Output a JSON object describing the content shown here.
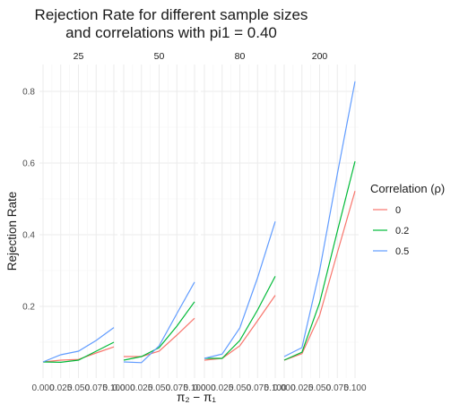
{
  "chart_data": {
    "type": "line",
    "title_lines": [
      "Rejection Rate for different sample sizes",
      "and correlations with pi1 = 0.40"
    ],
    "xlabel": "π₂ − π₁",
    "ylabel": "Rejection Rate",
    "x_values": [
      0,
      0.025,
      0.05,
      0.075,
      0.1
    ],
    "x_tick_labels": [
      "0.000",
      "0.025",
      "0.050",
      "0.075",
      "0.100"
    ],
    "xlim": [
      0,
      0.1
    ],
    "ylim": [
      0.0,
      0.85
    ],
    "y_ticks": [
      0.2,
      0.4,
      0.6,
      0.8
    ],
    "y_tick_labels": [
      "0.2",
      "0.4",
      "0.6",
      "0.8"
    ],
    "grid": true,
    "legend": {
      "title": "Correlation (ρ)",
      "position": "right",
      "entries": [
        {
          "label": "0",
          "color": "#F8766D"
        },
        {
          "label": "0.2",
          "color": "#00BA38"
        },
        {
          "label": "0.5",
          "color": "#619CFF"
        }
      ]
    },
    "facets": [
      {
        "label": "25",
        "series": [
          {
            "name": "0",
            "values": [
              0.045,
              0.05,
              0.052,
              0.07,
              0.087
            ]
          },
          {
            "name": "0.2",
            "values": [
              0.045,
              0.044,
              0.05,
              0.075,
              0.1
            ]
          },
          {
            "name": "0.5",
            "values": [
              0.045,
              0.065,
              0.075,
              0.105,
              0.141
            ]
          }
        ]
      },
      {
        "label": "50",
        "series": [
          {
            "name": "0",
            "values": [
              0.06,
              0.06,
              0.075,
              0.12,
              0.167
            ]
          },
          {
            "name": "0.2",
            "values": [
              0.05,
              0.06,
              0.085,
              0.145,
              0.213
            ]
          },
          {
            "name": "0.5",
            "values": [
              0.045,
              0.043,
              0.09,
              0.18,
              0.268
            ]
          }
        ]
      },
      {
        "label": "80",
        "series": [
          {
            "name": "0",
            "values": [
              0.05,
              0.055,
              0.09,
              0.16,
              0.231
            ]
          },
          {
            "name": "0.2",
            "values": [
              0.055,
              0.055,
              0.105,
              0.19,
              0.284
            ]
          },
          {
            "name": "0.5",
            "values": [
              0.055,
              0.067,
              0.14,
              0.28,
              0.437
            ]
          }
        ]
      },
      {
        "label": "200",
        "series": [
          {
            "name": "0",
            "values": [
              0.05,
              0.068,
              0.175,
              0.35,
              0.522
            ]
          },
          {
            "name": "0.2",
            "values": [
              0.05,
              0.072,
              0.21,
              0.41,
              0.605
            ]
          },
          {
            "name": "0.5",
            "values": [
              0.06,
              0.085,
              0.3,
              0.57,
              0.828
            ]
          }
        ]
      }
    ]
  }
}
